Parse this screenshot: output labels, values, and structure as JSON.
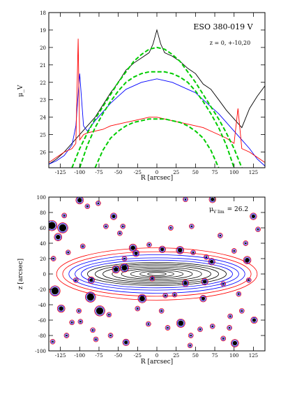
{
  "chart_data": [
    {
      "type": "line",
      "title": "ESO 380-019 V",
      "annotation": "z = 0, +-10,20",
      "xlabel": "R [arcsec]",
      "ylabel": "μ_V",
      "xlim": [
        -140,
        140
      ],
      "ylim": [
        26.9,
        18
      ],
      "y_inverted": true,
      "xticks": [
        -125,
        -100,
        -75,
        -50,
        -25,
        0,
        25,
        50,
        75,
        100,
        125
      ],
      "yticks": [
        18,
        19,
        20,
        21,
        22,
        23,
        24,
        25,
        26
      ],
      "series": [
        {
          "color": "#000000",
          "x": [
            -140,
            -130,
            -120,
            -110,
            -100,
            -90,
            -80,
            -70,
            -60,
            -50,
            -40,
            -30,
            -20,
            -10,
            -5,
            0,
            5,
            10,
            20,
            30,
            40,
            50,
            60,
            70,
            80,
            90,
            100,
            110,
            120,
            130,
            140
          ],
          "y": [
            26.7,
            26.4,
            26.0,
            25.5,
            25.0,
            24.5,
            24.0,
            23.3,
            22.6,
            22.0,
            21.3,
            20.9,
            20.6,
            20.3,
            19.8,
            19.0,
            19.8,
            20.3,
            20.5,
            20.8,
            21.2,
            21.5,
            22.1,
            22.4,
            23.0,
            23.6,
            24.1,
            24.6,
            23.5,
            22.8,
            22.2
          ]
        },
        {
          "color": "#0000ff",
          "x": [
            -140,
            -130,
            -120,
            -110,
            -105,
            -100,
            -95,
            -90,
            -80,
            -70,
            -60,
            -50,
            -40,
            -30,
            -20,
            -10,
            0,
            10,
            20,
            30,
            40,
            50,
            60,
            70,
            80,
            90,
            100,
            110,
            120,
            130,
            140
          ],
          "y": [
            26.7,
            26.5,
            26.2,
            25.6,
            24.5,
            21.5,
            24.5,
            24.8,
            24.2,
            23.7,
            23.2,
            22.8,
            22.4,
            22.2,
            22.0,
            21.9,
            21.8,
            21.9,
            22.0,
            22.2,
            22.4,
            22.6,
            23.0,
            23.4,
            23.8,
            24.3,
            24.8,
            25.3,
            25.8,
            26.4,
            26.8
          ]
        },
        {
          "color": "#ff0000",
          "x": [
            -140,
            -130,
            -120,
            -110,
            -105,
            -102,
            -100,
            -95,
            -90,
            -80,
            -70,
            -60,
            -50,
            -40,
            -30,
            -20,
            -10,
            0,
            10,
            20,
            30,
            40,
            50,
            60,
            70,
            80,
            90,
            100,
            105,
            110,
            120,
            130,
            140
          ],
          "y": [
            26.6,
            26.3,
            26.0,
            25.8,
            25.5,
            19.5,
            25.3,
            25.0,
            24.9,
            24.8,
            24.7,
            24.5,
            24.4,
            24.3,
            24.2,
            24.1,
            24.0,
            24.0,
            24.1,
            24.2,
            24.3,
            24.4,
            24.5,
            24.6,
            24.8,
            25.0,
            25.2,
            25.5,
            23.5,
            25.8,
            26.0,
            26.3,
            26.6
          ]
        },
        {
          "color": "#00cc00",
          "dashed": true,
          "x": [
            -110,
            -100,
            -90,
            -80,
            -70,
            -60,
            -50,
            -40,
            -30,
            -20,
            -10,
            0,
            10,
            20,
            30,
            40,
            50,
            60,
            70,
            80,
            90,
            100,
            110
          ],
          "y": [
            26.9,
            25.8,
            24.9,
            24.1,
            23.4,
            22.7,
            22.0,
            21.4,
            20.8,
            20.4,
            20.1,
            20.0,
            20.1,
            20.4,
            20.8,
            21.4,
            22.0,
            22.7,
            23.4,
            24.1,
            24.9,
            25.8,
            26.9
          ]
        },
        {
          "color": "#00cc00",
          "dashed": true,
          "x": [
            -100,
            -90,
            -80,
            -70,
            -60,
            -50,
            -40,
            -30,
            -20,
            -10,
            0,
            10,
            20,
            30,
            40,
            50,
            60,
            70,
            80,
            90,
            100
          ],
          "y": [
            26.9,
            25.6,
            24.6,
            23.8,
            23.1,
            22.5,
            22.0,
            21.7,
            21.5,
            21.4,
            21.4,
            21.4,
            21.5,
            21.7,
            22.0,
            22.5,
            23.1,
            23.8,
            24.6,
            25.6,
            26.9
          ]
        },
        {
          "color": "#00cc00",
          "dashed": true,
          "x": [
            -80,
            -70,
            -60,
            -50,
            -40,
            -30,
            -20,
            -10,
            0,
            10,
            20,
            30,
            40,
            50,
            60,
            70,
            80
          ],
          "y": [
            26.9,
            25.9,
            25.2,
            24.8,
            24.5,
            24.3,
            24.2,
            24.1,
            24.1,
            24.1,
            24.2,
            24.3,
            24.5,
            24.8,
            25.2,
            25.9,
            26.9
          ]
        }
      ]
    },
    {
      "type": "contour",
      "annotation_prefix": "μ",
      "annotation_sub": "V lim",
      "annotation_value": "= 26.2",
      "xlabel": "R [arcsec]",
      "ylabel": "z [arcsec]",
      "xlim": [
        -140,
        140
      ],
      "ylim": [
        -100,
        100
      ],
      "xticks": [
        -125,
        -100,
        -75,
        -50,
        -25,
        0,
        25,
        50,
        75,
        100,
        125
      ],
      "yticks": [
        -100,
        -80,
        -60,
        -40,
        -20,
        0,
        20,
        40,
        60,
        80,
        100
      ],
      "galaxy": {
        "center": [
          0,
          0
        ],
        "levels": [
          {
            "rx": 130,
            "rz": 34,
            "color": "#ff0000"
          },
          {
            "rx": 122,
            "rz": 29,
            "color": "#ff0000"
          },
          {
            "rx": 114,
            "rz": 25,
            "color": "#0000ff"
          },
          {
            "rx": 106,
            "rz": 21,
            "color": "#0000ff"
          },
          {
            "rx": 98,
            "rz": 18,
            "color": "#0000ff"
          },
          {
            "rx": 90,
            "rz": 15,
            "color": "#000000"
          },
          {
            "rx": 80,
            "rz": 13,
            "color": "#000000"
          },
          {
            "rx": 70,
            "rz": 11,
            "color": "#000000"
          },
          {
            "rx": 58,
            "rz": 9,
            "color": "#000000"
          },
          {
            "rx": 46,
            "rz": 7,
            "color": "#000000"
          },
          {
            "rx": 34,
            "rz": 5,
            "color": "#000000"
          },
          {
            "rx": 22,
            "rz": 3.5,
            "color": "#000000"
          },
          {
            "rx": 12,
            "rz": 2,
            "color": "#000000"
          }
        ]
      },
      "stars": [
        [
          -128,
          48,
          2.5
        ],
        [
          -122,
          60,
          4
        ],
        [
          -120,
          76,
          1
        ],
        [
          -105,
          -8,
          1
        ],
        [
          -100,
          96,
          2.5
        ],
        [
          -96,
          36,
          1
        ],
        [
          -90,
          88,
          1
        ],
        [
          -85,
          -8,
          2
        ],
        [
          -76,
          92,
          1
        ],
        [
          -56,
          75,
          2
        ],
        [
          -48,
          53,
          1
        ],
        [
          -42,
          20,
          1
        ],
        [
          -31,
          34,
          2.5
        ],
        [
          -27,
          27,
          2
        ],
        [
          -44,
          62,
          1
        ],
        [
          -66,
          62,
          1
        ],
        [
          -53,
          6,
          2.5
        ],
        [
          -42,
          8,
          3
        ],
        [
          -19,
          -32,
          3
        ],
        [
          -6,
          -6,
          1
        ],
        [
          7,
          32,
          2
        ],
        [
          23,
          -27,
          1
        ],
        [
          30,
          31,
          2.5
        ],
        [
          47,
          28,
          1
        ],
        [
          62,
          -10,
          2
        ],
        [
          71,
          16,
          2
        ],
        [
          64,
          22,
          1
        ],
        [
          60,
          -32,
          2
        ],
        [
          86,
          -13,
          1
        ],
        [
          106,
          -26,
          1
        ],
        [
          117,
          18,
          2.5
        ],
        [
          119,
          -8,
          1
        ],
        [
          131,
          58,
          1
        ],
        [
          126,
          -60,
          2
        ],
        [
          110,
          -48,
          1
        ],
        [
          101,
          -90,
          2.5
        ],
        [
          125,
          75,
          2
        ],
        [
          72,
          97,
          2
        ],
        [
          37,
          97,
          1
        ],
        [
          -136,
          63,
          4
        ],
        [
          -132,
          -22,
          4
        ],
        [
          -124,
          -45,
          2.5
        ],
        [
          -117,
          -80,
          1
        ],
        [
          -110,
          -63,
          1
        ],
        [
          -99,
          -62,
          1
        ],
        [
          -83,
          -73,
          1
        ],
        [
          -74,
          -48,
          4
        ],
        [
          -62,
          -53,
          1
        ],
        [
          -40,
          -89,
          2
        ],
        [
          -25,
          -45,
          1
        ],
        [
          -11,
          -65,
          1
        ],
        [
          6,
          -48,
          1
        ],
        [
          14,
          -70,
          1
        ],
        [
          31,
          -64,
          3
        ],
        [
          44,
          -80,
          1
        ],
        [
          56,
          -72,
          1
        ],
        [
          72,
          -68,
          1
        ],
        [
          86,
          -84,
          1
        ],
        [
          94,
          -70,
          1
        ],
        [
          43,
          -93,
          1
        ],
        [
          -135,
          -88,
          1
        ],
        [
          -86,
          -30,
          4
        ],
        [
          -101,
          -48,
          1
        ],
        [
          -79,
          -85,
          1
        ],
        [
          37,
          -12,
          2
        ],
        [
          11,
          -28,
          1
        ],
        [
          -10,
          38,
          1
        ],
        [
          18,
          60,
          1
        ],
        [
          45,
          62,
          1
        ],
        [
          82,
          50,
          1
        ],
        [
          100,
          30,
          1
        ],
        [
          115,
          40,
          1
        ],
        [
          95,
          -55,
          1
        ],
        [
          -115,
          28,
          1
        ],
        [
          -134,
          20,
          1
        ],
        [
          -60,
          -80,
          1
        ]
      ]
    }
  ]
}
